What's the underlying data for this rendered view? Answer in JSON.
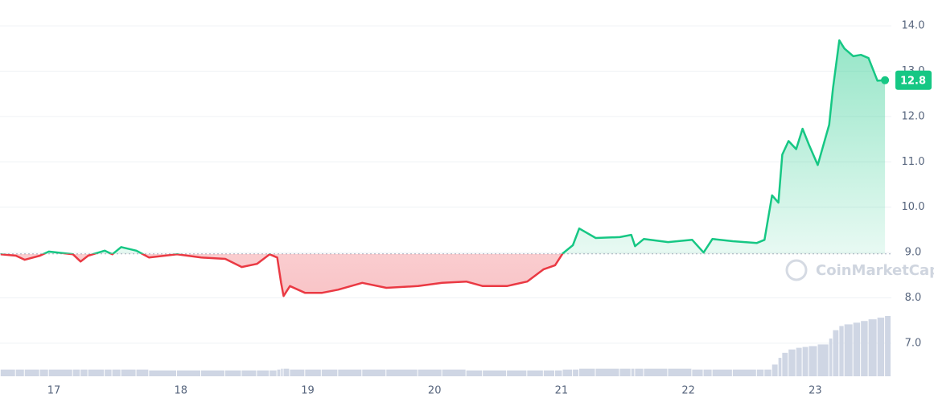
{
  "chart_data": {
    "type": "line",
    "x": [
      16.58,
      16.7,
      16.77,
      16.89,
      16.96,
      17.15,
      17.21,
      17.27,
      17.4,
      17.46,
      17.53,
      17.65,
      17.75,
      17.97,
      18.16,
      18.35,
      18.48,
      18.6,
      18.7,
      18.76,
      18.79,
      18.81,
      18.86,
      18.98,
      19.11,
      19.24,
      19.43,
      19.62,
      19.87,
      20.06,
      20.25,
      20.38,
      20.57,
      20.73,
      20.86,
      20.95,
      21.01,
      21.09,
      21.14,
      21.27,
      21.46,
      21.55,
      21.58,
      21.65,
      21.84,
      22.03,
      22.12,
      22.19,
      22.35,
      22.54,
      22.6,
      22.66,
      22.71,
      22.74,
      22.79,
      22.85,
      22.9,
      22.95,
      23.02,
      23.11,
      23.14,
      23.19,
      23.23,
      23.3,
      23.36,
      23.42,
      23.49,
      23.55
    ],
    "series": [
      {
        "values": [
          8.96,
          8.93,
          8.84,
          8.93,
          9.02,
          8.96,
          8.8,
          8.93,
          9.04,
          8.96,
          9.12,
          9.04,
          8.89,
          8.96,
          8.89,
          8.86,
          8.68,
          8.75,
          8.96,
          8.89,
          8.33,
          8.04,
          8.26,
          8.11,
          8.11,
          8.18,
          8.33,
          8.22,
          8.26,
          8.33,
          8.36,
          8.26,
          8.26,
          8.36,
          8.63,
          8.72,
          8.98,
          9.16,
          9.53,
          9.32,
          9.34,
          9.39,
          9.14,
          9.3,
          9.23,
          9.28,
          9.0,
          9.3,
          9.25,
          9.21,
          9.28,
          10.26,
          10.1,
          11.16,
          11.46,
          11.28,
          11.73,
          11.38,
          10.93,
          11.82,
          12.62,
          13.68,
          13.5,
          13.33,
          13.36,
          13.29,
          12.79,
          12.8
        ],
        "up_color": "#16c784",
        "down_color": "#ea3943"
      }
    ],
    "volume": [
      8,
      8,
      8,
      8,
      8,
      8,
      8,
      8,
      8,
      8,
      8,
      8,
      7,
      7,
      7,
      7,
      7,
      7,
      7,
      8,
      9,
      9,
      8,
      8,
      8,
      8,
      8,
      8,
      8,
      8,
      7,
      7,
      7,
      7,
      7,
      7,
      8,
      8,
      9,
      9,
      9,
      9,
      9,
      9,
      9,
      8,
      8,
      8,
      8,
      8,
      8,
      14,
      22,
      28,
      32,
      34,
      35,
      36,
      38,
      45,
      55,
      60,
      62,
      64,
      66,
      68,
      70,
      72
    ],
    "volume_color": "#cfd6e4",
    "baseline": 8.97,
    "current_price": 12.8,
    "watermark": "CoinMarketCap",
    "xlim": [
      16.575,
      23.6
    ],
    "xticks": [
      17,
      18,
      19,
      20,
      21,
      22,
      23
    ],
    "ylim": [
      6.27,
      14.57
    ],
    "yticks": [
      {
        "value": 7,
        "label": "7.0"
      },
      {
        "value": 8,
        "label": "8.0"
      },
      {
        "value": 9,
        "label": "9.0"
      },
      {
        "value": 10,
        "label": "10.0"
      },
      {
        "value": 11,
        "label": "11.0"
      },
      {
        "value": 12,
        "label": "12.0"
      },
      {
        "value": 13,
        "label": "13.0"
      },
      {
        "value": 14,
        "label": "14.0"
      }
    ],
    "grid": true
  }
}
